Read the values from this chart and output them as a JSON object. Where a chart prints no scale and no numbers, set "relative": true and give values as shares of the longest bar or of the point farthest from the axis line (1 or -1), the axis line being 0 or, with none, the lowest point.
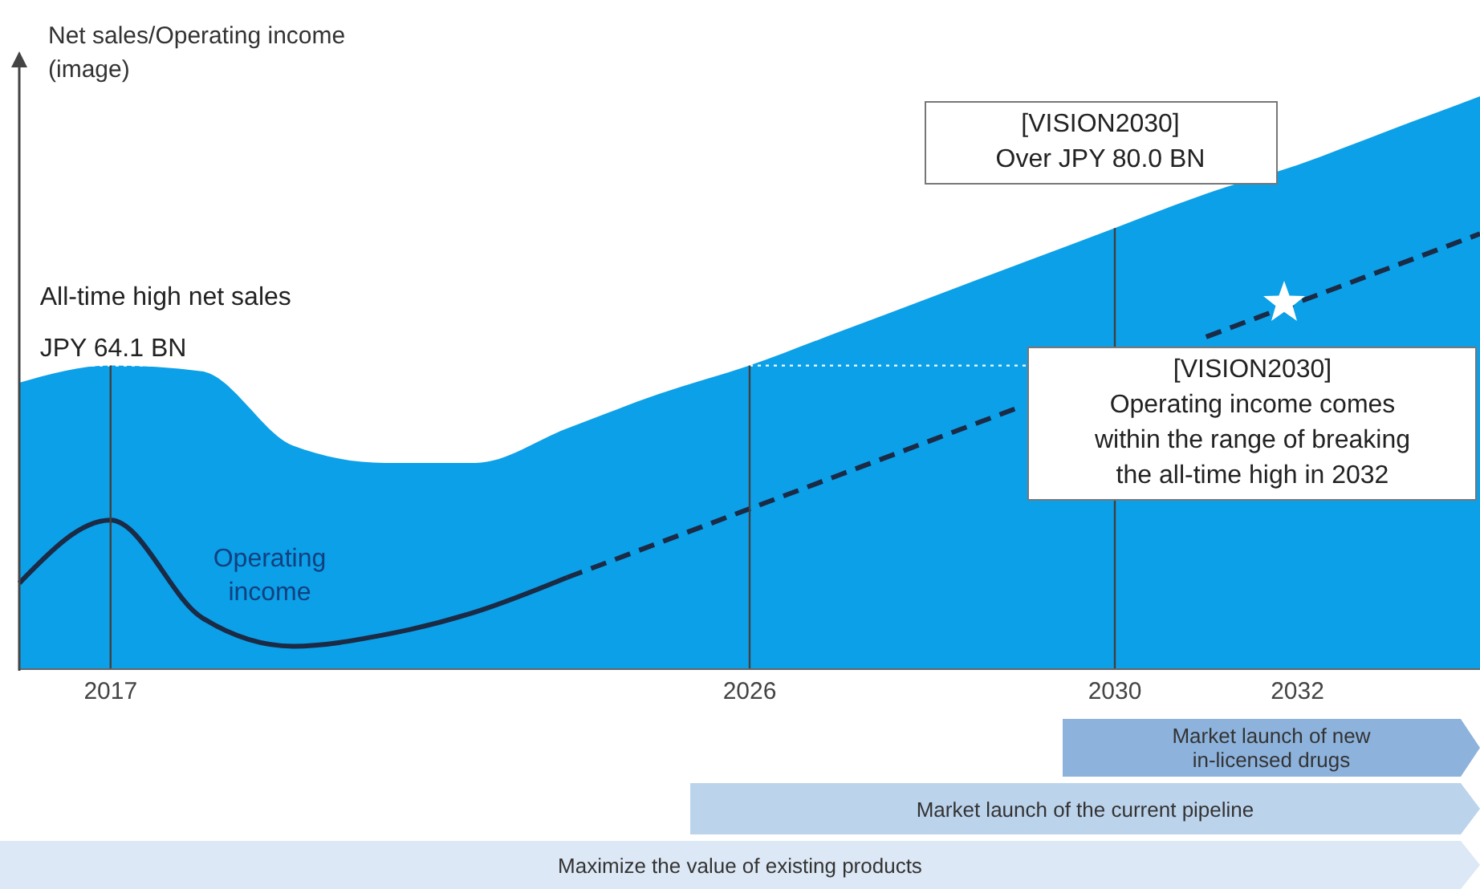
{
  "chart_data": {
    "type": "area",
    "relative": true,
    "ylabel": "Net sales/Operating income\n(image)",
    "categories": [
      null,
      "2017",
      null,
      null,
      null,
      null,
      null,
      null,
      "2026",
      null,
      null,
      null,
      "2030",
      null,
      "2032",
      null,
      null
    ],
    "series": [
      {
        "color": "#0ba0e8",
        "values": [
          0.5,
          0.53,
          0.52,
          0.39,
          0.36,
          0.36,
          0.42,
          0.48,
          0.53,
          0.59,
          0.65,
          0.71,
          0.77,
          0.83,
          0.88,
          0.94,
          1
        ]
      },
      {
        "type": "line",
        "name": "Operating income",
        "color": "#1b2a45",
        "line_style": "solid",
        "values": [
          0.15,
          0.26,
          0.09,
          0.04,
          0.06,
          0.1,
          0.16,
          null,
          null,
          null,
          null,
          null,
          null,
          null,
          null,
          null,
          null
        ]
      },
      {
        "type": "line",
        "color": "#1b2a45",
        "line_style": "dashed",
        "values": [
          null,
          null,
          null,
          null,
          null,
          null,
          0.16,
          0.22,
          0.28,
          0.34,
          0.4,
          0.46,
          null,
          0.58,
          0.64,
          0.7,
          0.76
        ]
      }
    ],
    "marker": "none",
    "ref_lines": [
      {
        "axis": "y",
        "value": 0.53,
        "color": "#ffffff",
        "line_style": "dotted"
      },
      {
        "axis": "x",
        "value": "2017",
        "color": "#404040"
      },
      {
        "axis": "x",
        "value": "2026",
        "color": "#404040"
      },
      {
        "axis": "x",
        "value": "2030",
        "color": "#404040"
      }
    ],
    "annotations": [
      {
        "text": "All-time high net sales\nJPY 64.1 BN",
        "x": "2017",
        "y": 0.53
      },
      {
        "text": "[VISION2030]\nOver JPY 80.0 BN",
        "x": "2030",
        "y": 0.77
      },
      {
        "text": "[VISION2030]\nOperating income comes\nwithin the range of breaking\nthe all-time high in 2032",
        "x": "2032",
        "y": 0.64
      },
      "Market launch  of new\nin-licensed drugs",
      "Market launch  of the current pipeline",
      "Maximize the value of existing products"
    ]
  }
}
